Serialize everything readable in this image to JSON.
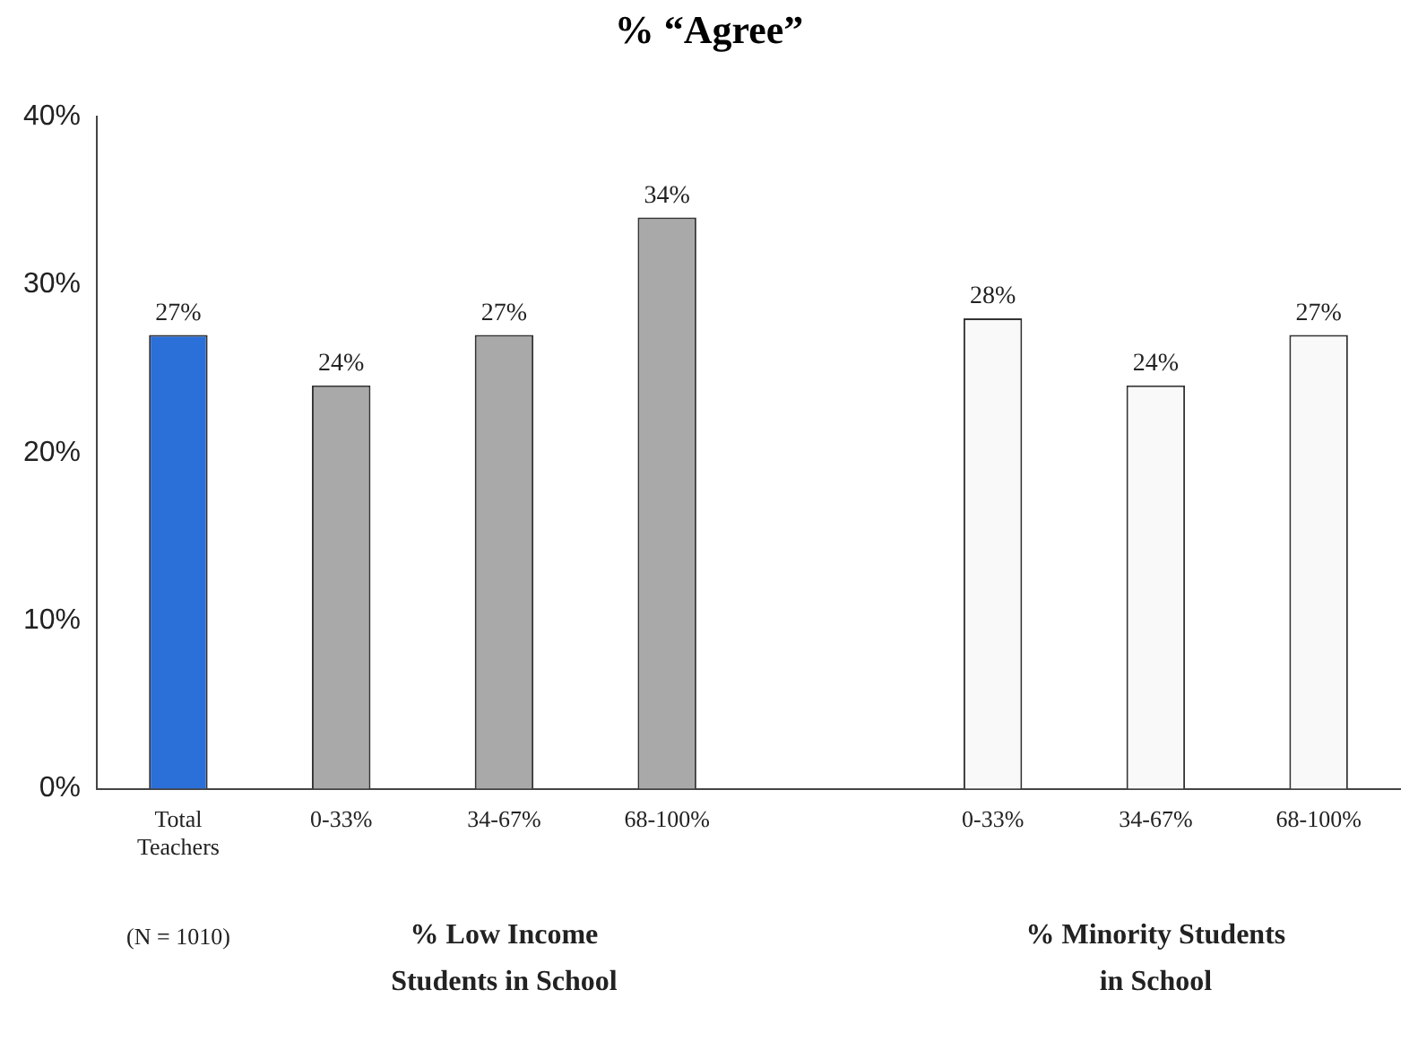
{
  "chart_data": {
    "type": "bar",
    "title": "% “Agree”",
    "categories": [
      "Total Teachers",
      "0-33%",
      "34-67%",
      "68-100%",
      null,
      "0-33%",
      "34-67%",
      "68-100%"
    ],
    "values": [
      27,
      24,
      27,
      34,
      null,
      28,
      24,
      27
    ],
    "colors": [
      "#2b6fd8",
      "#a9a9a9",
      "#a9a9a9",
      "#a9a9a9",
      "#ffffff",
      "#f9f9f9",
      "#f9f9f9",
      "#f9f9f9"
    ],
    "value_labels": [
      "27%",
      "24%",
      "27%",
      "34%",
      null,
      "28%",
      "24%",
      "27%"
    ],
    "ylim": [
      0,
      40
    ],
    "yticks": [
      {
        "value": 0,
        "label": "0%"
      },
      {
        "value": 10,
        "label": "10%"
      },
      {
        "value": 20,
        "label": "20%"
      },
      {
        "value": 30,
        "label": "30%"
      },
      {
        "value": 40,
        "label": "40%"
      }
    ],
    "grid": false,
    "legend": false,
    "annotations": [
      "(N = 1010)",
      "% Low Income Students in School",
      "% Minority Students in School"
    ]
  }
}
